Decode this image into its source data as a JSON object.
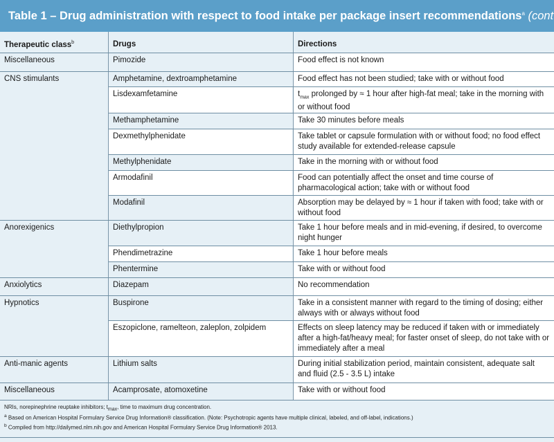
{
  "title": {
    "text": "Table 1 – Drug administration with respect to food intake per package insert recommendations",
    "sup": "a",
    "contd": " (cont'd)"
  },
  "headers": {
    "class": "Therapeutic class",
    "class_sup": "b",
    "drugs": "Drugs",
    "directions": "Directions"
  },
  "classes": [
    "Miscellaneous",
    "CNS stimulants",
    "Anorexigenics",
    "Anxiolytics",
    "Hypnotics",
    "Anti-manic agents",
    "Miscellaneous"
  ],
  "rows": [
    {
      "drug": "Pimozide",
      "direction": "Food effect is not known"
    },
    {
      "drug": "Amphetamine, dextroamphetamine",
      "direction": "Food effect has not been studied; take with or without food"
    },
    {
      "drug": "Lisdexamfetamine",
      "direction_pre": "t",
      "direction_sub": "max",
      "direction": " prolonged by ≈ 1 hour after high-fat meal; take in the morning with or without food"
    },
    {
      "drug": "Methamphetamine",
      "direction": "Take 30 minutes before meals"
    },
    {
      "drug": "Dexmethylphenidate",
      "direction": "Take tablet or capsule formulation with or without food; no food effect study available for extended-release capsule"
    },
    {
      "drug": "Methylphenidate",
      "direction": "Take in the morning with or without food"
    },
    {
      "drug": "Armodafinil",
      "direction": "Food can potentially affect the onset and time course of pharmacological action; take with or without food"
    },
    {
      "drug": "Modafinil",
      "direction": "Absorption may be delayed by ≈ 1 hour if taken with food; take with or without food"
    },
    {
      "drug": "Diethylpropion",
      "direction": "Take 1 hour before meals and in mid-evening, if desired, to overcome night hunger"
    },
    {
      "drug": "Phendimetrazine",
      "direction": "Take 1 hour before meals"
    },
    {
      "drug": "Phentermine",
      "direction": "Take with or without food"
    },
    {
      "drug": "Diazepam",
      "direction": "No recommendation"
    },
    {
      "drug": "Buspirone",
      "direction": "Take in a consistent manner with regard to the timing of dosing; either always with or always without food"
    },
    {
      "drug": "Eszopiclone, ramelteon, zaleplon, zolpidem",
      "direction": "Effects on sleep latency may be reduced if taken with or immediately after a high-fat/heavy meal; for faster onset of sleep, do not take with or immediately after a meal"
    },
    {
      "drug": "Lithium salts",
      "direction": "During initial stabilization period, maintain consistent, adequate salt and fluid (2.5 - 3.5 L) intake"
    },
    {
      "drug": "Acamprosate, atomoxetine",
      "direction": "Take with or without food"
    }
  ],
  "footnotes": {
    "line1_pre": "NRIs, norepinephrine reuptake inhibitors; t",
    "line1_sub": "max",
    "line1_post": ", time to maximum drug concentration.",
    "line2_mark": "a",
    "line2": " Based on American Hospital Formulary Service Drug Information® classification. (Note: Psychotropic agents have multiple clinical, labeled, and off-label, indications.)",
    "line3_mark": "b",
    "line3": " Compiled from http://dailymed.nlm.nih.gov and American Hospital Formulary Service Drug Information® 2013."
  },
  "colors": {
    "title_bg": "#5b9fc9",
    "band": "#e6f0f6",
    "rule": "#6e8ea3"
  }
}
